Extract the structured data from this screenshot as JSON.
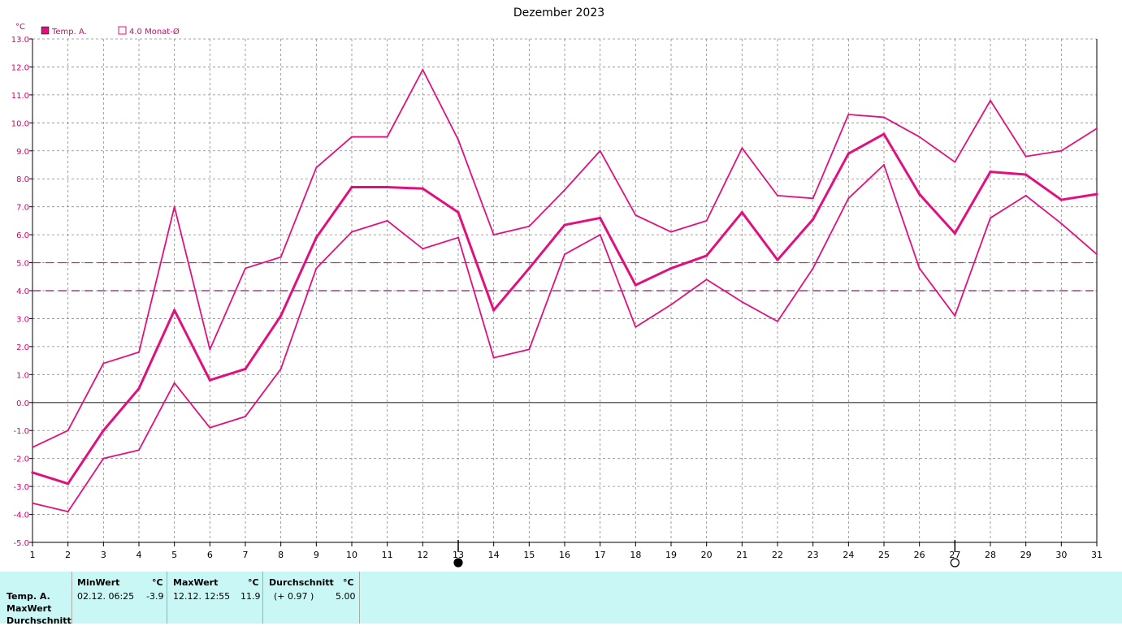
{
  "chart_data": {
    "type": "line",
    "title": "Dezember 2023",
    "y_unit": "°C",
    "ylim": [
      -5.0,
      13.0
    ],
    "y_ticks": [
      "-5.0",
      "-4.0",
      "-3.0",
      "-2.0",
      "-1.0",
      "0.0",
      "1.0",
      "2.0",
      "3.0",
      "4.0",
      "5.0",
      "6.0",
      "7.0",
      "8.0",
      "9.0",
      "10.0",
      "11.0",
      "12.0",
      "13.0"
    ],
    "x": [
      1,
      2,
      3,
      4,
      5,
      6,
      7,
      8,
      9,
      10,
      11,
      12,
      13,
      14,
      15,
      16,
      17,
      18,
      19,
      20,
      21,
      22,
      23,
      24,
      25,
      26,
      27,
      28,
      29,
      30,
      31
    ],
    "grid": true,
    "legend_position": "top-left",
    "legend": [
      "Temp. A.",
      "4.0 Monat-Ø"
    ],
    "series": [
      {
        "name": "Temp. A.",
        "role": "mean",
        "color": "#e0117f",
        "values": [
          -2.5,
          -2.9,
          -1.0,
          0.5,
          3.3,
          0.8,
          1.2,
          3.1,
          5.9,
          7.7,
          7.7,
          7.65,
          6.8,
          3.3,
          4.8,
          6.35,
          6.6,
          4.2,
          4.8,
          5.25,
          6.8,
          5.1,
          6.55,
          8.9,
          9.6,
          7.45,
          6.05,
          8.25,
          8.15,
          7.25,
          7.45
        ]
      },
      {
        "role": "max",
        "color": "#e0117f",
        "values": [
          -1.6,
          -1.0,
          1.4,
          1.8,
          7.0,
          1.9,
          4.8,
          5.2,
          8.4,
          9.5,
          9.5,
          11.9,
          9.4,
          6.0,
          6.3,
          7.6,
          9.0,
          6.7,
          6.1,
          6.5,
          9.1,
          7.4,
          7.3,
          10.3,
          10.2,
          9.5,
          8.6,
          10.8,
          8.8,
          9.0,
          9.8
        ]
      },
      {
        "role": "min",
        "color": "#e0117f",
        "values": [
          -3.6,
          -3.9,
          -2.0,
          -1.7,
          0.7,
          -0.9,
          -0.5,
          1.2,
          4.8,
          6.1,
          6.5,
          5.5,
          5.9,
          1.6,
          1.9,
          5.3,
          6.0,
          2.7,
          3.5,
          4.4,
          3.6,
          2.9,
          4.8,
          7.3,
          8.5,
          4.8,
          3.1,
          6.6,
          7.4,
          6.4,
          5.3
        ]
      }
    ],
    "reference_lines": [
      {
        "value": 5.0,
        "style": "dashed",
        "color": "#e0117f"
      },
      {
        "value": 4.0,
        "style": "dashed",
        "color": "#8a1a70"
      }
    ],
    "markers": [
      {
        "day": 13,
        "symbol": "filled-circle"
      },
      {
        "day": 27,
        "symbol": "open-circle"
      }
    ]
  },
  "stats": {
    "row_labels": [
      "Temp. A.",
      "MaxWert",
      "Durchschnitt"
    ],
    "min": {
      "header": "MinWert",
      "unit": "°C",
      "datetime": "02.12.  06:25",
      "value": "-3.9"
    },
    "max": {
      "header": "MaxWert",
      "unit": "°C",
      "datetime": "12.12.  12:55",
      "value": "11.9"
    },
    "avg": {
      "header": "Durchschnitt",
      "unit": "°C",
      "diff": "(+ 0.97 )",
      "value": "5.00"
    }
  },
  "colors": {
    "accent": "#e0117f",
    "panel": "#c9f7f5"
  }
}
